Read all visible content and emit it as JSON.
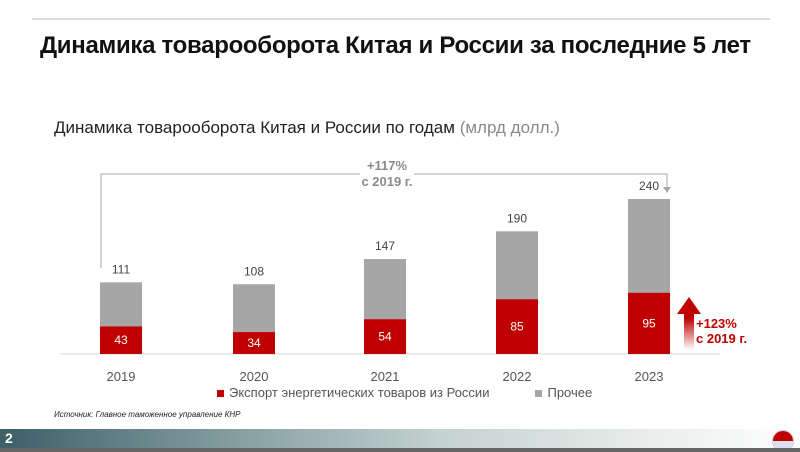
{
  "header": {
    "title": "Динамика товарооборота Китая и России за последние 5 лет"
  },
  "chart_data": {
    "type": "bar",
    "stacked": true,
    "title": "Динамика товарооборота Китая и России по годам",
    "unit": "(млрд долл.)",
    "categories": [
      "2019",
      "2020",
      "2021",
      "2022",
      "2023"
    ],
    "totals": [
      111,
      108,
      147,
      190,
      240
    ],
    "series": [
      {
        "name": "Экспорт энергетических товаров из России",
        "values": [
          43,
          34,
          54,
          85,
          95
        ],
        "color": "#c00000"
      },
      {
        "name": "Прочее",
        "values": [
          68,
          74,
          93,
          105,
          145
        ],
        "color": "#a6a6a6"
      }
    ],
    "ylim": [
      0,
      240
    ],
    "grid": false,
    "legend": "bottom",
    "annotations": {
      "total_growth": [
        "+117%",
        "с 2019 г."
      ],
      "energy_growth": [
        "+123%",
        "с 2019 г."
      ]
    }
  },
  "footer": {
    "source": "Источник: Главное таможенное управление КНР",
    "page": "2"
  }
}
